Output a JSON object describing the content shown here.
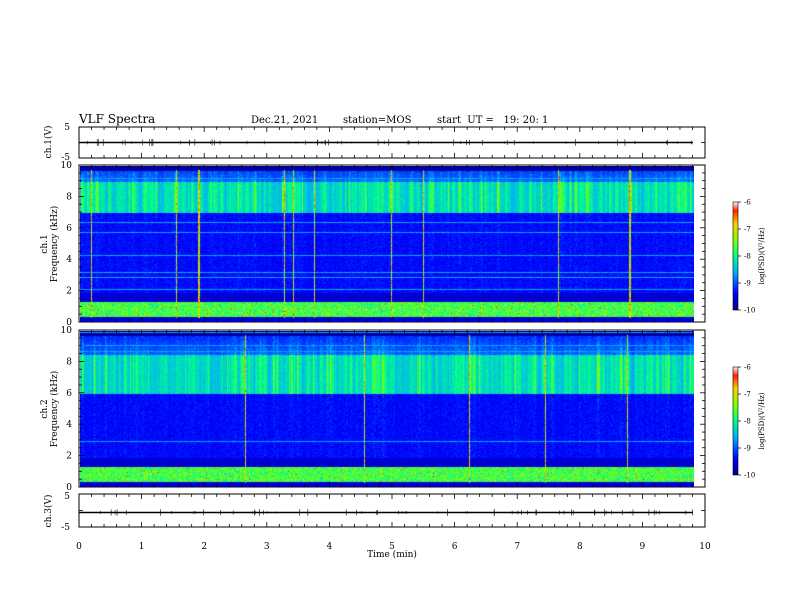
{
  "header": {
    "title": "VLF Spectra",
    "date": "Dec.21, 2021",
    "station": "station=MOS",
    "start": "start  UT =   19: 20: 1"
  },
  "chart_data": [
    {
      "id": "ch1_waveform",
      "type": "line",
      "ylabel": "ch.1(V)",
      "ylim": [
        -5,
        5
      ],
      "yticks": [
        "5",
        "-5"
      ],
      "x": [
        0,
        9.8
      ],
      "values": [
        0,
        0
      ]
    },
    {
      "id": "ch1_spectrogram",
      "type": "heatmap",
      "ylabel_top": "ch.1",
      "ylabel": "Frequency (kHz)",
      "ylim": [
        0,
        10
      ],
      "yticks": [
        "0",
        "2",
        "4",
        "6",
        "8",
        "10"
      ],
      "xlim": [
        0,
        10
      ],
      "data_until_min": 9.8,
      "color_label": "log(PSD)(V²/Hz)",
      "color_range": [
        -10,
        -6
      ],
      "color_ticks": [
        "-6",
        "-7",
        "-8",
        "-9",
        "-10"
      ],
      "intense_band_khz": [
        7,
        9
      ]
    },
    {
      "id": "ch2_spectrogram",
      "type": "heatmap",
      "ylabel_top": "ch.2",
      "ylabel": "Frequency (kHz)",
      "ylim": [
        0,
        10
      ],
      "yticks": [
        "0",
        "2",
        "4",
        "6",
        "8",
        "10"
      ],
      "xlim": [
        0,
        10
      ],
      "data_until_min": 9.8,
      "color_label": "log(PSD)(V²/Hz)",
      "color_range": [
        -10,
        -6
      ],
      "color_ticks": [
        "-6",
        "-7",
        "-8",
        "-9",
        "-10"
      ],
      "intense_band_khz": [
        6,
        8.5
      ]
    },
    {
      "id": "ch3_waveform",
      "type": "line",
      "ylabel": "ch.3(V)",
      "ylim": [
        -5,
        5
      ],
      "yticks": [
        "5",
        "-5"
      ],
      "x": [
        0,
        9.8
      ],
      "values": [
        0,
        0
      ]
    }
  ],
  "x_axis": {
    "label": "Time (min)",
    "ticks": [
      "0",
      "1",
      "2",
      "3",
      "4",
      "5",
      "6",
      "7",
      "8",
      "9",
      "10"
    ]
  }
}
